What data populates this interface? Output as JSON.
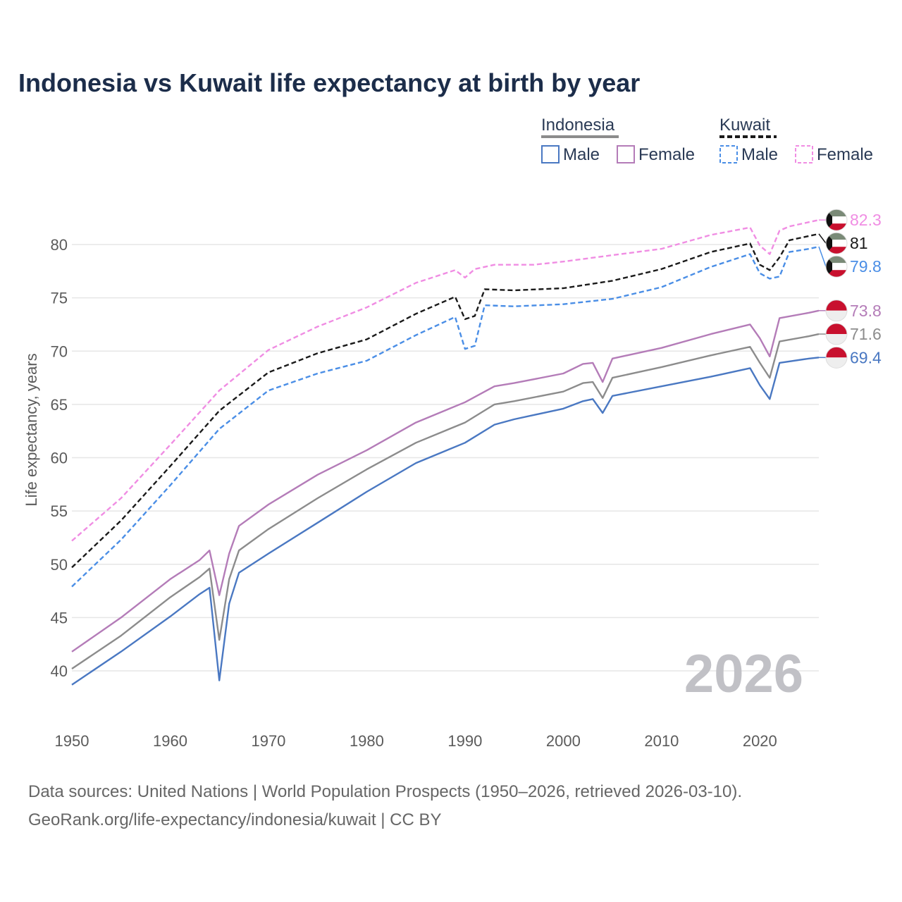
{
  "chart_data": {
    "type": "line",
    "title": "Indonesia vs Kuwait life expectancy at birth by year",
    "ylabel": "Life expectancy, years",
    "xlabel": "",
    "xlim": [
      1950,
      2026
    ],
    "ylim": [
      36,
      85
    ],
    "x_ticks": [
      1950,
      1960,
      1970,
      1980,
      1990,
      2000,
      2010,
      2020
    ],
    "y_ticks": [
      40,
      45,
      50,
      55,
      60,
      65,
      70,
      75,
      80
    ],
    "grid": true,
    "watermark_year": "2026",
    "legend": {
      "groups": [
        {
          "country": "Indonesia",
          "entries": [
            "Male",
            "Female"
          ]
        },
        {
          "country": "Kuwait",
          "entries": [
            "Male",
            "Female"
          ]
        }
      ]
    },
    "series": [
      {
        "name": "Kuwait Female",
        "country": "Kuwait",
        "sex": "Female",
        "color": "#f08de3",
        "dashed": true,
        "flag": "kuwait",
        "end_label": "82.3",
        "points": [
          [
            1950,
            52.2
          ],
          [
            1955,
            56.2
          ],
          [
            1960,
            61.2
          ],
          [
            1965,
            66.3
          ],
          [
            1970,
            70.1
          ],
          [
            1975,
            72.3
          ],
          [
            1980,
            74.1
          ],
          [
            1985,
            76.4
          ],
          [
            1989,
            77.6
          ],
          [
            1990,
            76.9
          ],
          [
            1991,
            77.7
          ],
          [
            1993,
            78.1
          ],
          [
            1997,
            78.1
          ],
          [
            2000,
            78.4
          ],
          [
            2005,
            79.0
          ],
          [
            2010,
            79.6
          ],
          [
            2015,
            80.9
          ],
          [
            2019,
            81.6
          ],
          [
            2020,
            79.9
          ],
          [
            2021,
            79.1
          ],
          [
            2022,
            81.3
          ],
          [
            2023,
            81.7
          ],
          [
            2025,
            82.1
          ],
          [
            2026,
            82.3
          ]
        ]
      },
      {
        "name": "Kuwait Both",
        "country": "Kuwait",
        "sex": "Both",
        "color": "#1a1a1a",
        "dashed": true,
        "flag": "kuwait",
        "end_label": "81",
        "points": [
          [
            1950,
            49.7
          ],
          [
            1955,
            54.1
          ],
          [
            1960,
            59.2
          ],
          [
            1965,
            64.4
          ],
          [
            1970,
            68.0
          ],
          [
            1975,
            69.8
          ],
          [
            1980,
            71.1
          ],
          [
            1985,
            73.5
          ],
          [
            1989,
            75.1
          ],
          [
            1990,
            73.0
          ],
          [
            1991,
            73.3
          ],
          [
            1992,
            75.8
          ],
          [
            1995,
            75.7
          ],
          [
            2000,
            75.9
          ],
          [
            2005,
            76.6
          ],
          [
            2010,
            77.7
          ],
          [
            2015,
            79.3
          ],
          [
            2019,
            80.1
          ],
          [
            2020,
            78.1
          ],
          [
            2021,
            77.6
          ],
          [
            2022,
            78.8
          ],
          [
            2023,
            80.4
          ],
          [
            2025,
            80.8
          ],
          [
            2026,
            81.0
          ]
        ]
      },
      {
        "name": "Kuwait Male",
        "country": "Kuwait",
        "sex": "Male",
        "color": "#4a8ee6",
        "dashed": true,
        "flag": "kuwait",
        "end_label": "79.8",
        "points": [
          [
            1950,
            47.9
          ],
          [
            1955,
            52.3
          ],
          [
            1960,
            57.4
          ],
          [
            1965,
            62.7
          ],
          [
            1970,
            66.3
          ],
          [
            1975,
            67.9
          ],
          [
            1980,
            69.1
          ],
          [
            1985,
            71.5
          ],
          [
            1989,
            73.2
          ],
          [
            1990,
            70.2
          ],
          [
            1991,
            70.5
          ],
          [
            1992,
            74.3
          ],
          [
            1995,
            74.2
          ],
          [
            2000,
            74.4
          ],
          [
            2005,
            74.9
          ],
          [
            2010,
            76.0
          ],
          [
            2015,
            77.9
          ],
          [
            2019,
            79.1
          ],
          [
            2020,
            77.3
          ],
          [
            2021,
            76.8
          ],
          [
            2022,
            77.0
          ],
          [
            2023,
            79.3
          ],
          [
            2025,
            79.6
          ],
          [
            2026,
            79.8
          ]
        ]
      },
      {
        "name": "Indonesia Female",
        "country": "Indonesia",
        "sex": "Female",
        "color": "#b47cb8",
        "dashed": false,
        "flag": "indonesia",
        "end_label": "73.8",
        "points": [
          [
            1950,
            41.8
          ],
          [
            1955,
            45.0
          ],
          [
            1960,
            48.6
          ],
          [
            1963,
            50.4
          ],
          [
            1964,
            51.3
          ],
          [
            1965,
            47.1
          ],
          [
            1966,
            51.0
          ],
          [
            1967,
            53.6
          ],
          [
            1970,
            55.6
          ],
          [
            1975,
            58.4
          ],
          [
            1980,
            60.7
          ],
          [
            1985,
            63.3
          ],
          [
            1990,
            65.2
          ],
          [
            1993,
            66.7
          ],
          [
            1995,
            67.0
          ],
          [
            2000,
            67.9
          ],
          [
            2002,
            68.8
          ],
          [
            2003,
            68.9
          ],
          [
            2004,
            67.1
          ],
          [
            2005,
            69.3
          ],
          [
            2010,
            70.3
          ],
          [
            2015,
            71.6
          ],
          [
            2019,
            72.5
          ],
          [
            2020,
            71.2
          ],
          [
            2021,
            69.5
          ],
          [
            2022,
            73.1
          ],
          [
            2025,
            73.6
          ],
          [
            2026,
            73.8
          ]
        ]
      },
      {
        "name": "Indonesia Both",
        "country": "Indonesia",
        "sex": "Both",
        "color": "#8c8c8c",
        "dashed": false,
        "flag": "indonesia",
        "end_label": "71.6",
        "points": [
          [
            1950,
            40.2
          ],
          [
            1955,
            43.3
          ],
          [
            1960,
            46.9
          ],
          [
            1963,
            48.8
          ],
          [
            1964,
            49.6
          ],
          [
            1965,
            42.9
          ],
          [
            1966,
            48.6
          ],
          [
            1967,
            51.3
          ],
          [
            1970,
            53.3
          ],
          [
            1975,
            56.2
          ],
          [
            1980,
            58.9
          ],
          [
            1985,
            61.4
          ],
          [
            1990,
            63.3
          ],
          [
            1993,
            65.0
          ],
          [
            1995,
            65.3
          ],
          [
            2000,
            66.2
          ],
          [
            2002,
            67.0
          ],
          [
            2003,
            67.1
          ],
          [
            2004,
            65.6
          ],
          [
            2005,
            67.5
          ],
          [
            2010,
            68.5
          ],
          [
            2015,
            69.6
          ],
          [
            2019,
            70.4
          ],
          [
            2020,
            68.9
          ],
          [
            2021,
            67.5
          ],
          [
            2022,
            70.9
          ],
          [
            2025,
            71.4
          ],
          [
            2026,
            71.6
          ]
        ]
      },
      {
        "name": "Indonesia Male",
        "country": "Indonesia",
        "sex": "Male",
        "color": "#4a78c2",
        "dashed": false,
        "flag": "indonesia",
        "end_label": "69.4",
        "points": [
          [
            1950,
            38.7
          ],
          [
            1955,
            41.8
          ],
          [
            1960,
            45.1
          ],
          [
            1963,
            47.2
          ],
          [
            1964,
            47.8
          ],
          [
            1965,
            39.1
          ],
          [
            1966,
            46.3
          ],
          [
            1967,
            49.2
          ],
          [
            1970,
            51.0
          ],
          [
            1975,
            53.9
          ],
          [
            1980,
            56.8
          ],
          [
            1985,
            59.5
          ],
          [
            1990,
            61.4
          ],
          [
            1993,
            63.1
          ],
          [
            1995,
            63.6
          ],
          [
            2000,
            64.6
          ],
          [
            2002,
            65.3
          ],
          [
            2003,
            65.5
          ],
          [
            2004,
            64.2
          ],
          [
            2005,
            65.8
          ],
          [
            2010,
            66.7
          ],
          [
            2015,
            67.6
          ],
          [
            2019,
            68.4
          ],
          [
            2020,
            66.8
          ],
          [
            2021,
            65.5
          ],
          [
            2022,
            68.9
          ],
          [
            2025,
            69.3
          ],
          [
            2026,
            69.4
          ]
        ]
      }
    ]
  },
  "colors": {
    "title": "#1c2d4a",
    "grid": "#e6e6e6",
    "tick": "#5b5b5b",
    "indonesia_underline": "#8c8c8c",
    "kuwait_underline": "#1a1a1a",
    "watermark": "#c1c1c6",
    "flag_kuwait_green": "#7a8a77",
    "flag_kuwait_red": "#c8102e",
    "flag_indonesia_red": "#c8102e"
  },
  "source": {
    "line1": "Data sources: United Nations | World Population Prospects (1950–2026, retrieved 2026-03-10).",
    "line2": "GeoRank.org/life-expectancy/indonesia/kuwait | CC BY"
  }
}
